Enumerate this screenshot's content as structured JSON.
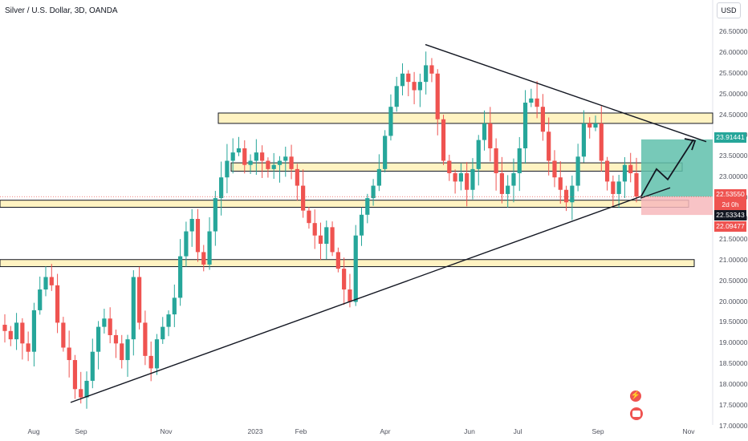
{
  "header": {
    "title": "Silver / U.S. Dollar, 3D, OANDA",
    "currency_button": "USD"
  },
  "price_labels": {
    "target": "23.91441",
    "current": "22.53550",
    "countdown": "2d 0h",
    "prev_close": "22.53343",
    "stop": "22.09477"
  },
  "colors": {
    "up": "#26a69a",
    "down": "#ef5350",
    "zone_fill": "#fff3c2",
    "profit_box": "#5fbfac",
    "loss_box": "#f7b8bc",
    "target_label": "#26a69a",
    "current_label": "#ef5350",
    "prev_label": "#131722",
    "stop_label": "#ef5350"
  },
  "icons": {
    "lightning": "lightning-icon",
    "flag": "us-flag-icon"
  },
  "chart_data": {
    "type": "candlestick",
    "title": "Silver / U.S. Dollar, 3D, OANDA",
    "ylim": [
      17.0,
      26.6
    ],
    "y_scale": "linear",
    "yticks": [
      "26.50000",
      "26.00000",
      "25.50000",
      "25.00000",
      "24.50000",
      "24.00000",
      "23.50000",
      "23.00000",
      "22.50000",
      "22.00000",
      "21.50000",
      "21.00000",
      "20.50000",
      "20.00000",
      "19.50000",
      "19.00000",
      "18.50000",
      "18.00000",
      "17.50000",
      "17.00000"
    ],
    "ytick_values": [
      26.5,
      26.0,
      25.5,
      25.0,
      24.5,
      24.0,
      23.5,
      23.0,
      22.5,
      22.0,
      21.5,
      21.0,
      20.5,
      20.0,
      19.5,
      19.0,
      18.5,
      18.0,
      17.5,
      17.0
    ],
    "xticks": [
      "Aug",
      "Sep",
      "Nov",
      "2023",
      "Feb",
      "Apr",
      "Jun",
      "Jul",
      "Sep",
      "Nov"
    ],
    "price_path": [
      19.3,
      19.1,
      19.5,
      19.0,
      18.8,
      19.8,
      20.3,
      20.6,
      20.4,
      19.5,
      18.9,
      18.6,
      17.9,
      17.7,
      18.1,
      18.8,
      19.4,
      19.6,
      19.2,
      19.0,
      18.6,
      19.1,
      20.6,
      19.5,
      18.7,
      18.4,
      19.1,
      19.4,
      19.7,
      20.1,
      21.1,
      21.7,
      22.0,
      21.2,
      20.9,
      21.7,
      22.5,
      23.0,
      23.4,
      23.6,
      23.7,
      23.3,
      23.4,
      23.6,
      23.4,
      23.2,
      23.3,
      23.4,
      23.5,
      23.2,
      22.8,
      22.2,
      21.9,
      21.6,
      21.4,
      21.8,
      21.2,
      20.8,
      20.3,
      20.0,
      21.6,
      22.1,
      22.5,
      22.8,
      23.2,
      24.0,
      24.7,
      25.2,
      25.5,
      25.3,
      25.1,
      25.3,
      25.7,
      25.5,
      24.4,
      23.4,
      23.1,
      22.9,
      23.1,
      22.7,
      23.2,
      23.9,
      24.3,
      23.7,
      23.1,
      22.6,
      22.8,
      23.1,
      23.7,
      24.8,
      24.9,
      24.7,
      24.1,
      23.4,
      23.0,
      22.7,
      22.4,
      22.8,
      23.5,
      24.3,
      24.2,
      24.3,
      23.4,
      22.9,
      22.6,
      22.9,
      23.3,
      23.1,
      22.54
    ],
    "support_resistance_zones": [
      {
        "low": 24.3,
        "high": 24.55
      },
      {
        "low": 23.15,
        "high": 23.35
      },
      {
        "low": 22.28,
        "high": 22.45
      },
      {
        "low": 20.85,
        "high": 21.02
      }
    ],
    "trendlines": [
      {
        "from": [
          "Sep 2022",
          17.58
        ],
        "to": [
          "Sep 2023",
          22.55
        ]
      },
      {
        "from": [
          "May 2023",
          26.2
        ],
        "to": [
          "Oct 2023",
          23.86
        ]
      }
    ],
    "position": {
      "entry": 22.5355,
      "target": 23.91441,
      "stop": 22.09477
    },
    "grid": false,
    "legend": "none"
  }
}
